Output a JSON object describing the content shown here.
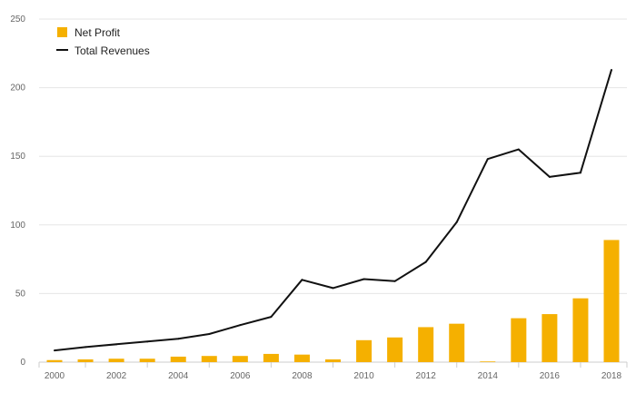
{
  "chart_data": {
    "type": "bar",
    "categories": [
      "2000",
      "2001",
      "2002",
      "2003",
      "2004",
      "2005",
      "2006",
      "2007",
      "2008",
      "2009",
      "2010",
      "2011",
      "2012",
      "2013",
      "2014",
      "2015",
      "2016",
      "2017",
      "2018"
    ],
    "x_tick_labels": [
      "2000",
      "2002",
      "2004",
      "2006",
      "2008",
      "2010",
      "2012",
      "2014",
      "2016",
      "2018"
    ],
    "y_ticks": [
      0,
      50,
      100,
      150,
      200,
      250
    ],
    "ylim": [
      0,
      250
    ],
    "grid": true,
    "legend_position": "top-left",
    "series": [
      {
        "name": "Net Profit",
        "type": "bar",
        "color": "#f5b000",
        "values": [
          1.5,
          2,
          2.5,
          2.5,
          4,
          4.5,
          4.5,
          6,
          5.5,
          2,
          16,
          18,
          25.5,
          28,
          0.5,
          32,
          35,
          46.5,
          89
        ]
      },
      {
        "name": "Total Revenues",
        "type": "line",
        "color": "#111111",
        "values": [
          8.5,
          11,
          13,
          15,
          17,
          20.5,
          27,
          33,
          60,
          54,
          60.5,
          59,
          73,
          102,
          148,
          155,
          135,
          138,
          213
        ]
      }
    ]
  }
}
